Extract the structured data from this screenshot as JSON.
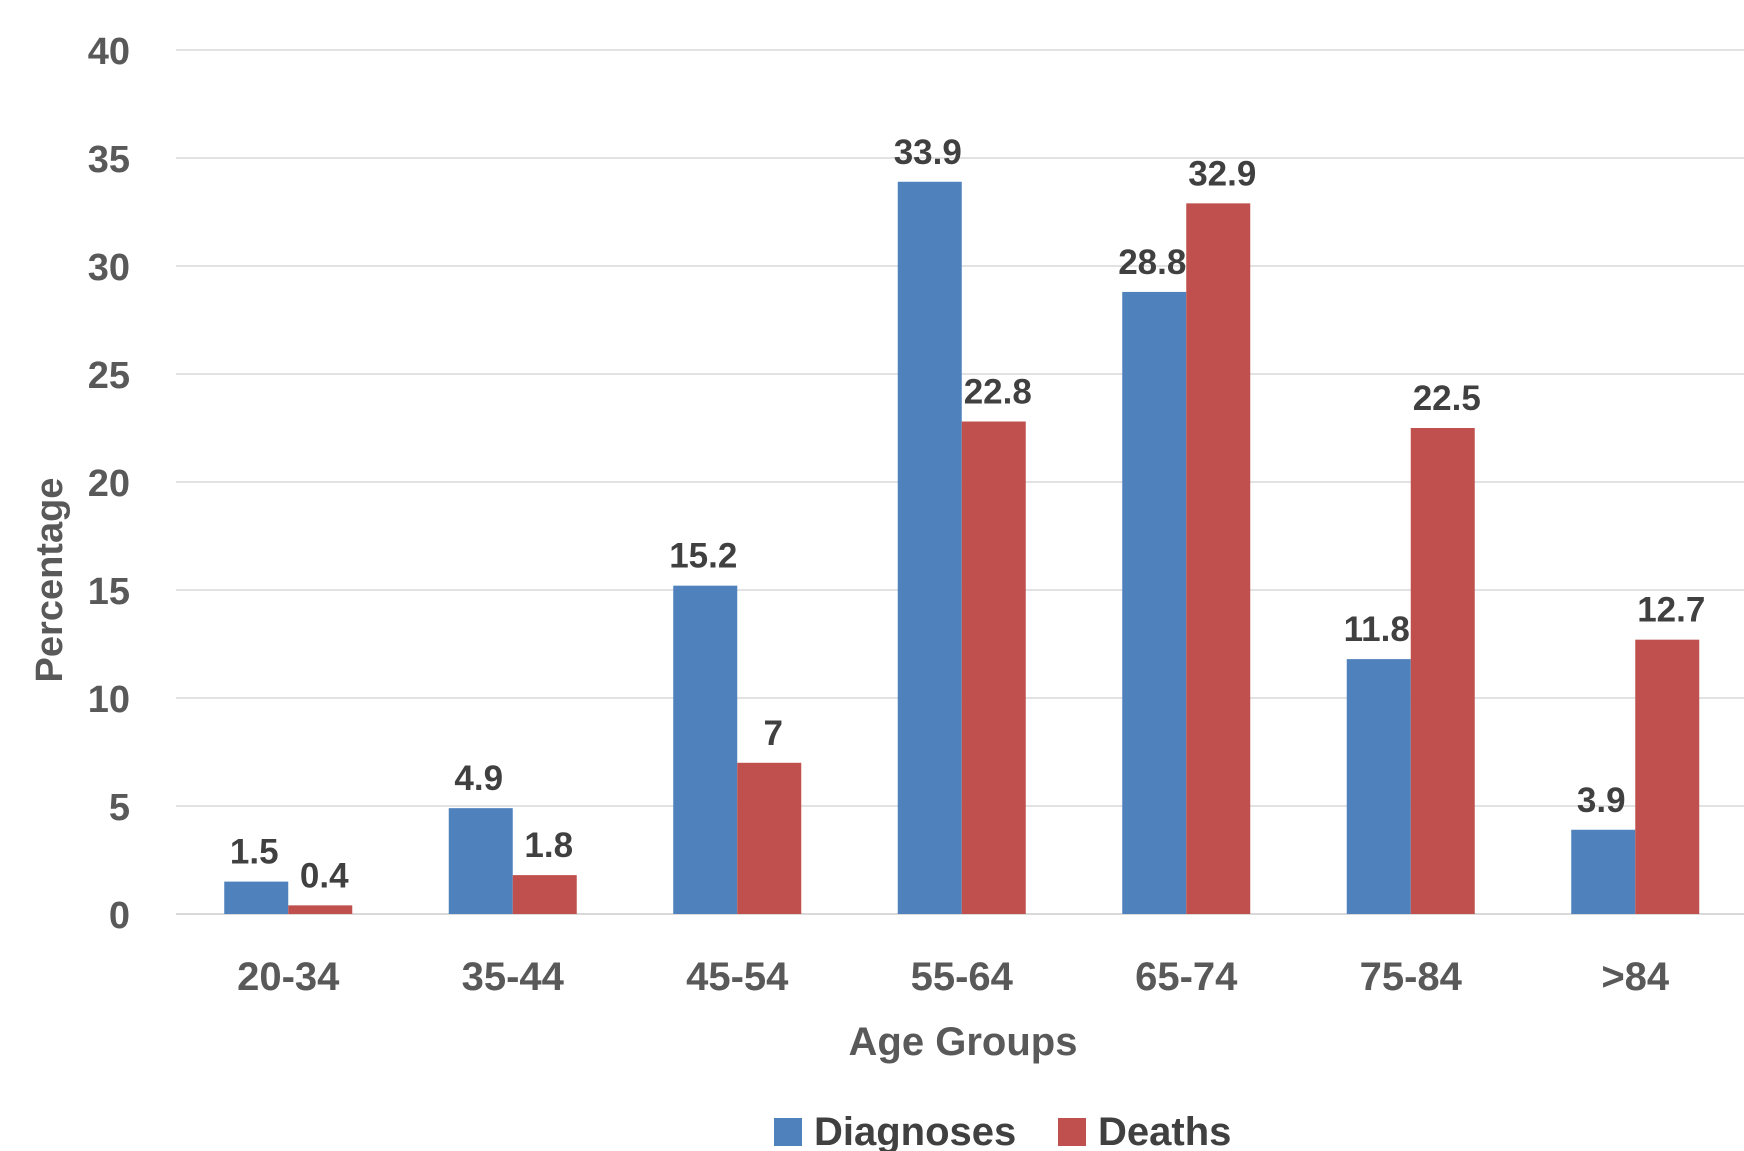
{
  "chart_data": {
    "type": "bar",
    "title": "",
    "xlabel": "Age Groups",
    "ylabel": "Percentage",
    "categories": [
      "20-34",
      "35-44",
      "45-54",
      "55-64",
      "65-74",
      "75-84",
      ">84"
    ],
    "series": [
      {
        "name": "Diagnoses",
        "color": "#4F81BD",
        "values": [
          1.5,
          4.9,
          15.2,
          33.9,
          28.8,
          11.8,
          3.9
        ],
        "labels": [
          "1.5",
          "4.9",
          "15.2",
          "33.9",
          "28.8",
          "11.8",
          "3.9"
        ]
      },
      {
        "name": "Deaths",
        "color": "#C0504D",
        "values": [
          0.4,
          1.8,
          7,
          22.8,
          32.9,
          22.5,
          12.7
        ],
        "labels": [
          "0.4",
          "1.8",
          "7",
          "22.8",
          "32.9",
          "22.5",
          "12.7"
        ]
      }
    ],
    "ylim": [
      0,
      40
    ],
    "yticks": [
      "0",
      "5",
      "10",
      "15",
      "20",
      "25",
      "30",
      "35",
      "40"
    ],
    "grid": true,
    "legend_position": "bottom",
    "gridline_color": "#D9D9D9",
    "axis_text_color": "#595959"
  }
}
